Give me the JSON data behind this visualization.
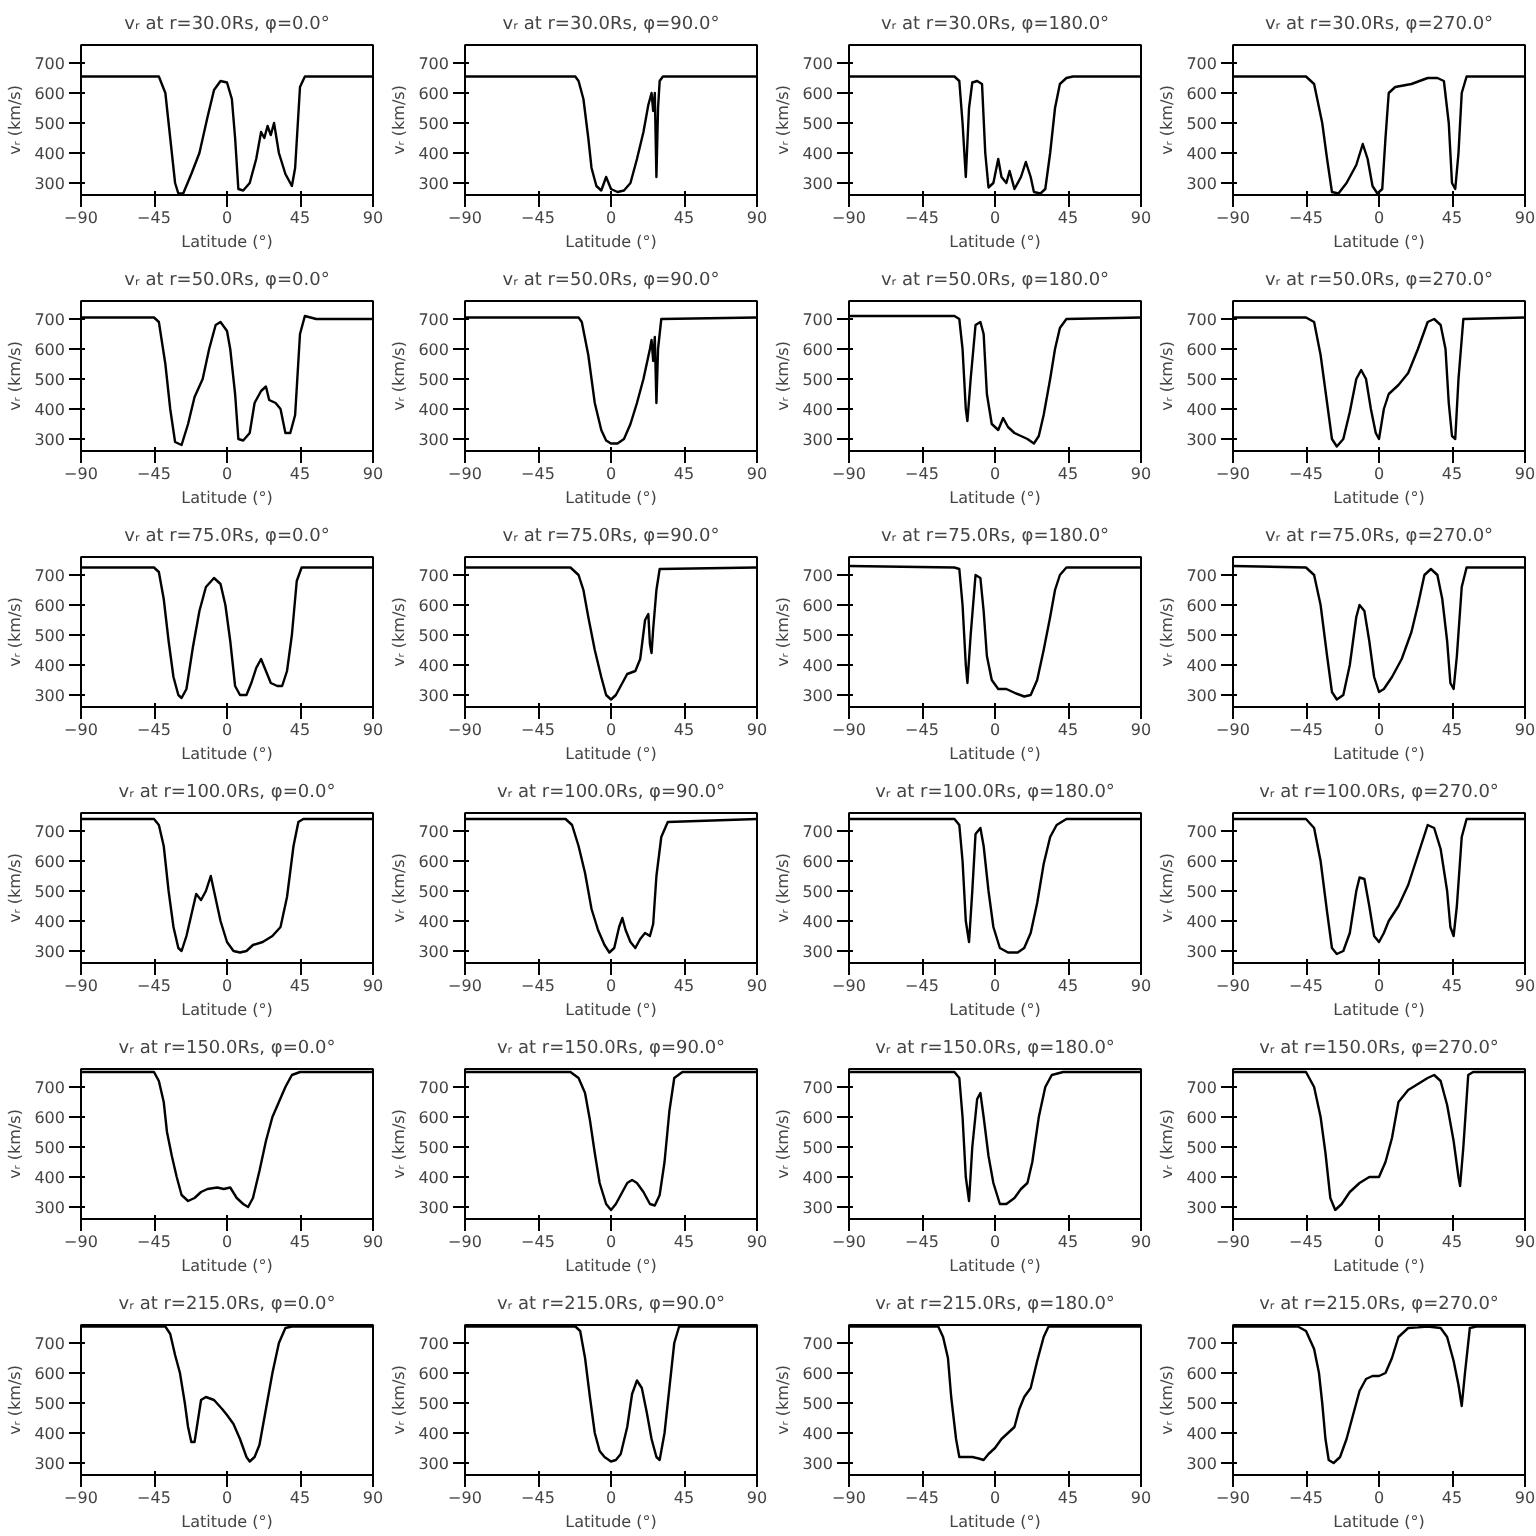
{
  "chart_data": [
    {
      "type": "line",
      "title": "vᵣ at r=30.0Rs, φ=0.0°",
      "xlabel": "Latitude (°)",
      "ylabel": "vᵣ (km/s)",
      "xlim": [
        -90,
        90
      ],
      "ylim": [
        260,
        760
      ],
      "xticks": [
        -90,
        -45,
        0,
        45,
        90
      ],
      "yticks": [
        300,
        400,
        500,
        600,
        700
      ],
      "x": [
        -90,
        -42,
        -38,
        -35,
        -32,
        -30,
        -27,
        -22,
        -17,
        -12,
        -8,
        -4,
        0,
        3,
        5,
        7,
        10,
        14,
        18,
        21,
        23,
        25,
        27,
        29,
        32,
        36,
        40,
        42,
        45,
        48,
        90
      ],
      "series": [
        {
          "color": "#000000",
          "values": [
            655,
            655,
            600,
            450,
            300,
            265,
            265,
            330,
            400,
            520,
            610,
            640,
            635,
            580,
            450,
            280,
            275,
            300,
            380,
            470,
            450,
            490,
            460,
            500,
            400,
            330,
            290,
            350,
            620,
            655,
            655
          ]
        }
      ]
    },
    {
      "type": "line",
      "title": "vᵣ at r=30.0Rs, φ=90.0°",
      "xlabel": "Latitude (°)",
      "ylabel": "vᵣ (km/s)",
      "xlim": [
        -90,
        90
      ],
      "ylim": [
        260,
        760
      ],
      "xticks": [
        -90,
        -45,
        0,
        45,
        90
      ],
      "yticks": [
        300,
        400,
        500,
        600,
        700
      ],
      "x": [
        -90,
        -22,
        -20,
        -17,
        -14,
        -12,
        -9,
        -6,
        -3,
        0,
        4,
        8,
        12,
        16,
        20,
        23,
        25,
        26,
        27,
        28,
        29,
        30,
        32,
        90
      ],
      "series": [
        {
          "color": "#000000",
          "values": [
            655,
            655,
            640,
            580,
            450,
            350,
            290,
            275,
            320,
            280,
            270,
            275,
            300,
            380,
            470,
            560,
            600,
            540,
            600,
            320,
            550,
            640,
            655,
            655
          ]
        }
      ]
    },
    {
      "type": "line",
      "title": "vᵣ at r=30.0Rs, φ=180.0°",
      "xlabel": "Latitude (°)",
      "ylabel": "vᵣ (km/s)",
      "xlim": [
        -90,
        90
      ],
      "ylim": [
        260,
        760
      ],
      "xticks": [
        -90,
        -45,
        0,
        45,
        90
      ],
      "yticks": [
        300,
        400,
        500,
        600,
        700
      ],
      "x": [
        -90,
        -25,
        -22,
        -20,
        -18,
        -16,
        -14,
        -11,
        -8,
        -6,
        -4,
        -1,
        2,
        4,
        7,
        9,
        12,
        16,
        19,
        22,
        24,
        28,
        31,
        34,
        37,
        40,
        44,
        48,
        90
      ],
      "series": [
        {
          "color": "#000000",
          "values": [
            655,
            655,
            640,
            500,
            320,
            550,
            635,
            640,
            630,
            400,
            285,
            300,
            380,
            320,
            300,
            340,
            280,
            320,
            370,
            320,
            270,
            265,
            280,
            400,
            550,
            630,
            650,
            655,
            655
          ]
        }
      ]
    },
    {
      "type": "line",
      "title": "vᵣ at r=30.0Rs, φ=270.0°",
      "xlabel": "Latitude (°)",
      "ylabel": "vᵣ (km/s)",
      "xlim": [
        -90,
        90
      ],
      "ylim": [
        260,
        760
      ],
      "xticks": [
        -90,
        -45,
        0,
        45,
        90
      ],
      "yticks": [
        300,
        400,
        500,
        600,
        700
      ],
      "x": [
        -90,
        -45,
        -40,
        -35,
        -32,
        -29,
        -25,
        -20,
        -14,
        -10,
        -7,
        -4,
        -1,
        2,
        4,
        6,
        10,
        20,
        30,
        36,
        40,
        43,
        45,
        47,
        49,
        51,
        54,
        90
      ],
      "series": [
        {
          "color": "#000000",
          "values": [
            655,
            655,
            630,
            500,
            380,
            270,
            265,
            300,
            360,
            430,
            380,
            290,
            265,
            280,
            450,
            600,
            620,
            630,
            650,
            650,
            640,
            500,
            300,
            280,
            400,
            600,
            655,
            655
          ]
        }
      ]
    },
    {
      "type": "line",
      "title": "vᵣ at r=50.0Rs, φ=0.0°",
      "xlabel": "Latitude (°)",
      "ylabel": "vᵣ (km/s)",
      "xlim": [
        -90,
        90
      ],
      "ylim": [
        260,
        760
      ],
      "xticks": [
        -90,
        -45,
        0,
        45,
        90
      ],
      "yticks": [
        300,
        400,
        500,
        600,
        700
      ],
      "x": [
        -90,
        -45,
        -42,
        -38,
        -35,
        -32,
        -28,
        -24,
        -20,
        -15,
        -11,
        -7,
        -4,
        0,
        2,
        5,
        7,
        10,
        14,
        17,
        21,
        24,
        26,
        30,
        33,
        36,
        39,
        42,
        45,
        48,
        55,
        90
      ],
      "series": [
        {
          "color": "#000000",
          "values": [
            705,
            705,
            690,
            550,
            400,
            290,
            280,
            350,
            440,
            500,
            600,
            680,
            690,
            660,
            600,
            450,
            300,
            295,
            320,
            420,
            460,
            475,
            430,
            420,
            400,
            320,
            320,
            380,
            650,
            710,
            700,
            700
          ]
        }
      ]
    },
    {
      "type": "line",
      "title": "vᵣ at r=50.0Rs, φ=90.0°",
      "xlabel": "Latitude (°)",
      "ylabel": "vᵣ (km/s)",
      "xlim": [
        -90,
        90
      ],
      "ylim": [
        260,
        760
      ],
      "xticks": [
        -90,
        -45,
        0,
        45,
        90
      ],
      "yticks": [
        300,
        400,
        500,
        600,
        700
      ],
      "x": [
        -90,
        -20,
        -18,
        -14,
        -10,
        -6,
        -3,
        0,
        4,
        8,
        12,
        16,
        20,
        24,
        25,
        26,
        27,
        28,
        29,
        31,
        90
      ],
      "series": [
        {
          "color": "#000000",
          "values": [
            705,
            705,
            690,
            580,
            420,
            330,
            295,
            285,
            285,
            300,
            350,
            420,
            500,
            600,
            630,
            560,
            640,
            420,
            600,
            700,
            705
          ]
        }
      ]
    },
    {
      "type": "line",
      "title": "vᵣ at r=50.0Rs, φ=180.0°",
      "xlabel": "Latitude (°)",
      "ylabel": "vᵣ (km/s)",
      "xlim": [
        -90,
        90
      ],
      "ylim": [
        260,
        760
      ],
      "xticks": [
        -90,
        -45,
        0,
        45,
        90
      ],
      "yticks": [
        300,
        400,
        500,
        600,
        700
      ],
      "x": [
        -90,
        -25,
        -22,
        -20,
        -18,
        -17,
        -15,
        -12,
        -9,
        -7,
        -5,
        -2,
        2,
        5,
        8,
        12,
        16,
        20,
        24,
        27,
        30,
        34,
        37,
        40,
        44,
        90
      ],
      "series": [
        {
          "color": "#000000",
          "values": [
            710,
            710,
            700,
            600,
            400,
            360,
            500,
            680,
            690,
            650,
            450,
            350,
            330,
            370,
            340,
            320,
            310,
            300,
            285,
            310,
            380,
            500,
            600,
            670,
            700,
            705
          ]
        }
      ]
    },
    {
      "type": "line",
      "title": "vᵣ at r=50.0Rs, φ=270.0°",
      "xlabel": "Latitude (°)",
      "ylabel": "vᵣ (km/s)",
      "xlim": [
        -90,
        90
      ],
      "ylim": [
        260,
        760
      ],
      "xticks": [
        -90,
        -45,
        0,
        45,
        90
      ],
      "yticks": [
        300,
        400,
        500,
        600,
        700
      ],
      "x": [
        -90,
        -45,
        -40,
        -36,
        -32,
        -29,
        -26,
        -22,
        -18,
        -14,
        -11,
        -8,
        -5,
        -2,
        0,
        3,
        6,
        12,
        18,
        24,
        30,
        34,
        38,
        41,
        43,
        45,
        47,
        49,
        52,
        90
      ],
      "series": [
        {
          "color": "#000000",
          "values": [
            705,
            705,
            690,
            580,
            420,
            300,
            275,
            300,
            390,
            500,
            530,
            500,
            400,
            320,
            300,
            400,
            450,
            480,
            520,
            600,
            690,
            700,
            680,
            600,
            420,
            310,
            300,
            500,
            700,
            705
          ]
        }
      ]
    },
    {
      "type": "line",
      "title": "vᵣ at r=75.0Rs, φ=0.0°",
      "xlabel": "Latitude (°)",
      "ylabel": "vᵣ (km/s)",
      "xlim": [
        -90,
        90
      ],
      "ylim": [
        260,
        760
      ],
      "xticks": [
        -90,
        -45,
        0,
        45,
        90
      ],
      "yticks": [
        300,
        400,
        500,
        600,
        700
      ],
      "x": [
        -90,
        -45,
        -42,
        -39,
        -36,
        -33,
        -30,
        -28,
        -25,
        -21,
        -17,
        -13,
        -8,
        -4,
        -1,
        2,
        5,
        8,
        12,
        15,
        18,
        21,
        24,
        27,
        31,
        34,
        37,
        40,
        43,
        46,
        90
      ],
      "series": [
        {
          "color": "#000000",
          "values": [
            725,
            725,
            710,
            620,
            480,
            360,
            300,
            290,
            320,
            460,
            580,
            660,
            690,
            670,
            600,
            480,
            330,
            300,
            300,
            340,
            390,
            420,
            380,
            340,
            330,
            330,
            380,
            500,
            680,
            725,
            725
          ]
        }
      ]
    },
    {
      "type": "line",
      "title": "vᵣ at r=75.0Rs, φ=90.0°",
      "xlabel": "Latitude (°)",
      "ylabel": "vᵣ (km/s)",
      "xlim": [
        -90,
        90
      ],
      "ylim": [
        260,
        760
      ],
      "xticks": [
        -90,
        -45,
        0,
        45,
        90
      ],
      "yticks": [
        300,
        400,
        500,
        600,
        700
      ],
      "x": [
        -90,
        -25,
        -20,
        -17,
        -14,
        -10,
        -6,
        -3,
        0,
        3,
        6,
        10,
        15,
        18,
        21,
        23,
        24,
        25,
        26,
        28,
        30,
        90
      ],
      "series": [
        {
          "color": "#000000",
          "values": [
            725,
            725,
            700,
            650,
            560,
            450,
            360,
            300,
            285,
            300,
            330,
            370,
            380,
            420,
            550,
            570,
            470,
            440,
            520,
            650,
            720,
            725
          ]
        }
      ]
    },
    {
      "type": "line",
      "title": "vᵣ at r=75.0Rs, φ=180.0°",
      "xlabel": "Latitude (°)",
      "ylabel": "vᵣ (km/s)",
      "xlim": [
        -90,
        90
      ],
      "ylim": [
        260,
        760
      ],
      "xticks": [
        -90,
        -45,
        0,
        45,
        90
      ],
      "yticks": [
        300,
        400,
        500,
        600,
        700
      ],
      "x": [
        -90,
        -25,
        -22,
        -20,
        -18,
        -17,
        -15,
        -12,
        -9,
        -7,
        -5,
        -2,
        2,
        7,
        13,
        18,
        22,
        26,
        30,
        34,
        37,
        40,
        44,
        90
      ],
      "series": [
        {
          "color": "#000000",
          "values": [
            730,
            725,
            720,
            600,
            400,
            340,
            500,
            700,
            690,
            580,
            430,
            350,
            320,
            320,
            305,
            295,
            300,
            350,
            450,
            560,
            650,
            700,
            725,
            725
          ]
        }
      ]
    },
    {
      "type": "line",
      "title": "vᵣ at r=75.0Rs, φ=270.0°",
      "xlabel": "Latitude (°)",
      "ylabel": "vᵣ (km/s)",
      "xlim": [
        -90,
        90
      ],
      "ylim": [
        260,
        760
      ],
      "xticks": [
        -90,
        -45,
        0,
        45,
        90
      ],
      "yticks": [
        300,
        400,
        500,
        600,
        700
      ],
      "x": [
        -90,
        -45,
        -40,
        -36,
        -32,
        -29,
        -26,
        -22,
        -18,
        -14,
        -12,
        -9,
        -6,
        -3,
        0,
        3,
        8,
        14,
        20,
        24,
        28,
        32,
        36,
        39,
        42,
        44,
        46,
        48,
        51,
        54,
        90
      ],
      "series": [
        {
          "color": "#000000",
          "values": [
            730,
            725,
            700,
            600,
            430,
            310,
            285,
            300,
            400,
            560,
            600,
            580,
            480,
            360,
            310,
            320,
            360,
            420,
            510,
            600,
            700,
            720,
            700,
            620,
            480,
            340,
            320,
            430,
            660,
            725,
            725
          ]
        }
      ]
    },
    {
      "type": "line",
      "title": "vᵣ at r=100.0Rs, φ=0.0°",
      "xlabel": "Latitude (°)",
      "ylabel": "vᵣ (km/s)",
      "xlim": [
        -90,
        90
      ],
      "ylim": [
        260,
        760
      ],
      "xticks": [
        -90,
        -45,
        0,
        45,
        90
      ],
      "yticks": [
        300,
        400,
        500,
        600,
        700
      ],
      "x": [
        -90,
        -45,
        -42,
        -39,
        -36,
        -33,
        -30,
        -28,
        -25,
        -22,
        -19,
        -16,
        -13,
        -10,
        -8,
        -4,
        0,
        4,
        8,
        12,
        16,
        22,
        28,
        33,
        37,
        41,
        44,
        47,
        90
      ],
      "series": [
        {
          "color": "#000000",
          "values": [
            740,
            740,
            720,
            650,
            500,
            380,
            310,
            300,
            350,
            420,
            490,
            470,
            500,
            550,
            500,
            400,
            330,
            300,
            295,
            300,
            320,
            330,
            350,
            380,
            480,
            650,
            730,
            740,
            740
          ]
        }
      ]
    },
    {
      "type": "line",
      "title": "vᵣ at r=100.0Rs, φ=90.0°",
      "xlabel": "Latitude (°)",
      "ylabel": "vᵣ (km/s)",
      "xlim": [
        -90,
        90
      ],
      "ylim": [
        260,
        760
      ],
      "xticks": [
        -90,
        -45,
        0,
        45,
        90
      ],
      "yticks": [
        300,
        400,
        500,
        600,
        700
      ],
      "x": [
        -90,
        -28,
        -24,
        -20,
        -16,
        -12,
        -8,
        -4,
        -1,
        2,
        5,
        7,
        9,
        12,
        15,
        18,
        21,
        24,
        26,
        28,
        31,
        35,
        90
      ],
      "series": [
        {
          "color": "#000000",
          "values": [
            740,
            740,
            720,
            650,
            560,
            440,
            370,
            320,
            295,
            310,
            380,
            410,
            370,
            330,
            310,
            340,
            360,
            350,
            390,
            550,
            680,
            730,
            740
          ]
        }
      ]
    },
    {
      "type": "line",
      "title": "vᵣ at r=100.0Rs, φ=180.0°",
      "xlabel": "Latitude (°)",
      "ylabel": "vᵣ (km/s)",
      "xlim": [
        -90,
        90
      ],
      "ylim": [
        260,
        760
      ],
      "xticks": [
        -90,
        -45,
        0,
        45,
        90
      ],
      "yticks": [
        300,
        400,
        500,
        600,
        700
      ],
      "x": [
        -90,
        -25,
        -22,
        -20,
        -18,
        -16,
        -14,
        -12,
        -9,
        -7,
        -4,
        -1,
        3,
        8,
        14,
        18,
        22,
        26,
        30,
        34,
        38,
        44,
        90
      ],
      "series": [
        {
          "color": "#000000",
          "values": [
            740,
            740,
            720,
            600,
            400,
            330,
            500,
            690,
            710,
            650,
            500,
            380,
            310,
            295,
            295,
            310,
            360,
            460,
            590,
            680,
            720,
            740,
            740
          ]
        }
      ]
    },
    {
      "type": "line",
      "title": "vᵣ at r=100.0Rs, φ=270.0°",
      "xlabel": "Latitude (°)",
      "ylabel": "vᵣ (km/s)",
      "xlim": [
        -90,
        90
      ],
      "ylim": [
        260,
        760
      ],
      "xticks": [
        -90,
        -45,
        0,
        45,
        90
      ],
      "yticks": [
        300,
        400,
        500,
        600,
        700
      ],
      "x": [
        -90,
        -45,
        -40,
        -36,
        -32,
        -29,
        -26,
        -22,
        -18,
        -14,
        -12,
        -9,
        -6,
        -3,
        0,
        3,
        6,
        12,
        18,
        24,
        30,
        34,
        38,
        42,
        44,
        46,
        48,
        51,
        54,
        90
      ],
      "series": [
        {
          "color": "#000000",
          "values": [
            740,
            740,
            710,
            600,
            430,
            310,
            290,
            300,
            360,
            500,
            545,
            540,
            450,
            350,
            330,
            360,
            400,
            450,
            520,
            620,
            720,
            710,
            640,
            500,
            380,
            350,
            450,
            680,
            740,
            740
          ]
        }
      ]
    },
    {
      "type": "line",
      "title": "vᵣ at r=150.0Rs, φ=0.0°",
      "xlabel": "Latitude (°)",
      "ylabel": "vᵣ (km/s)",
      "xlim": [
        -90,
        90
      ],
      "ylim": [
        260,
        760
      ],
      "xticks": [
        -90,
        -45,
        0,
        45,
        90
      ],
      "yticks": [
        300,
        400,
        500,
        600,
        700
      ],
      "x": [
        -90,
        -45,
        -42,
        -39,
        -37,
        -34,
        -31,
        -28,
        -24,
        -20,
        -16,
        -12,
        -6,
        -2,
        2,
        6,
        10,
        13,
        16,
        20,
        24,
        28,
        32,
        36,
        40,
        45,
        90
      ],
      "series": [
        {
          "color": "#000000",
          "values": [
            750,
            750,
            720,
            650,
            550,
            470,
            400,
            340,
            320,
            330,
            350,
            360,
            365,
            360,
            365,
            330,
            310,
            300,
            330,
            420,
            520,
            600,
            650,
            700,
            740,
            750,
            750
          ]
        }
      ]
    },
    {
      "type": "line",
      "title": "vᵣ at r=150.0Rs, φ=90.0°",
      "xlabel": "Latitude (°)",
      "ylabel": "vᵣ (km/s)",
      "xlim": [
        -90,
        90
      ],
      "ylim": [
        260,
        760
      ],
      "xticks": [
        -90,
        -45,
        0,
        45,
        90
      ],
      "yticks": [
        300,
        400,
        500,
        600,
        700
      ],
      "x": [
        -90,
        -25,
        -20,
        -16,
        -13,
        -10,
        -7,
        -3,
        0,
        3,
        6,
        10,
        13,
        16,
        20,
        24,
        27,
        30,
        33,
        36,
        39,
        44,
        90
      ],
      "series": [
        {
          "color": "#000000",
          "values": [
            750,
            750,
            730,
            680,
            590,
            480,
            380,
            310,
            290,
            310,
            340,
            380,
            390,
            380,
            350,
            310,
            305,
            340,
            450,
            620,
            730,
            750,
            750
          ]
        }
      ]
    },
    {
      "type": "line",
      "title": "vᵣ at r=150.0Rs, φ=180.0°",
      "xlabel": "Latitude (°)",
      "ylabel": "vᵣ (km/s)",
      "xlim": [
        -90,
        90
      ],
      "ylim": [
        260,
        760
      ],
      "xticks": [
        -90,
        -45,
        0,
        45,
        90
      ],
      "yticks": [
        300,
        400,
        500,
        600,
        700
      ],
      "x": [
        -90,
        -25,
        -22,
        -20,
        -18,
        -16,
        -14,
        -11,
        -9,
        -7,
        -4,
        -1,
        3,
        7,
        12,
        16,
        20,
        23,
        27,
        31,
        35,
        42,
        90
      ],
      "series": [
        {
          "color": "#000000",
          "values": [
            750,
            750,
            730,
            600,
            400,
            320,
            500,
            660,
            680,
            600,
            470,
            380,
            310,
            310,
            330,
            360,
            380,
            450,
            600,
            700,
            740,
            750,
            750
          ]
        }
      ]
    },
    {
      "type": "line",
      "title": "vᵣ at r=150.0Rs, φ=270.0°",
      "xlabel": "Latitude (°)",
      "ylabel": "vᵣ (km/s)",
      "xlim": [
        -90,
        90
      ],
      "ylim": [
        260,
        760
      ],
      "xticks": [
        -90,
        -45,
        0,
        45,
        90
      ],
      "yticks": [
        300,
        400,
        500,
        600,
        700
      ],
      "x": [
        -90,
        -45,
        -40,
        -36,
        -33,
        -30,
        -27,
        -23,
        -18,
        -12,
        -6,
        0,
        4,
        8,
        12,
        18,
        24,
        30,
        34,
        38,
        42,
        46,
        49,
        50,
        52,
        55,
        58,
        90
      ],
      "series": [
        {
          "color": "#000000",
          "values": [
            750,
            750,
            700,
            600,
            480,
            330,
            290,
            310,
            350,
            380,
            400,
            400,
            450,
            530,
            650,
            690,
            710,
            730,
            740,
            720,
            640,
            520,
            400,
            370,
            500,
            740,
            750,
            750
          ]
        }
      ]
    },
    {
      "type": "line",
      "title": "vᵣ at r=215.0Rs, φ=0.0°",
      "xlabel": "Latitude (°)",
      "ylabel": "vᵣ (km/s)",
      "xlim": [
        -90,
        90
      ],
      "ylim": [
        260,
        760
      ],
      "xticks": [
        -90,
        -45,
        0,
        45,
        90
      ],
      "yticks": [
        300,
        400,
        500,
        600,
        700
      ],
      "x": [
        -90,
        -38,
        -35,
        -32,
        -29,
        -26,
        -24,
        -22,
        -20,
        -18,
        -16,
        -13,
        -8,
        -3,
        0,
        4,
        8,
        12,
        14,
        17,
        20,
        24,
        28,
        32,
        36,
        40,
        90
      ],
      "series": [
        {
          "color": "#000000",
          "values": [
            755,
            755,
            730,
            660,
            600,
            500,
            420,
            370,
            370,
            440,
            510,
            520,
            510,
            480,
            460,
            430,
            380,
            320,
            305,
            320,
            360,
            480,
            600,
            700,
            750,
            755,
            755
          ]
        }
      ]
    },
    {
      "type": "line",
      "title": "vᵣ at r=215.0Rs, φ=90.0°",
      "xlabel": "Latitude (°)",
      "ylabel": "vᵣ (km/s)",
      "xlim": [
        -90,
        90
      ],
      "ylim": [
        260,
        760
      ],
      "xticks": [
        -90,
        -45,
        0,
        45,
        90
      ],
      "yticks": [
        300,
        400,
        500,
        600,
        700
      ],
      "x": [
        -90,
        -22,
        -19,
        -16,
        -13,
        -10,
        -7,
        -4,
        0,
        3,
        6,
        10,
        13,
        16,
        19,
        22,
        25,
        28,
        30,
        33,
        36,
        39,
        42,
        90
      ],
      "series": [
        {
          "color": "#000000",
          "values": [
            755,
            755,
            740,
            650,
            520,
            400,
            340,
            320,
            305,
            310,
            330,
            420,
            530,
            575,
            550,
            470,
            380,
            320,
            310,
            400,
            550,
            700,
            755,
            755
          ]
        }
      ]
    },
    {
      "type": "line",
      "title": "vᵣ at r=215.0Rs, φ=180.0°",
      "xlabel": "Latitude (°)",
      "ylabel": "vᵣ (km/s)",
      "xlim": [
        -90,
        90
      ],
      "ylim": [
        260,
        760
      ],
      "xticks": [
        -90,
        -45,
        0,
        45,
        90
      ],
      "yticks": [
        300,
        400,
        500,
        600,
        700
      ],
      "x": [
        -90,
        -35,
        -32,
        -29,
        -27,
        -24,
        -22,
        -18,
        -14,
        -10,
        -7,
        -4,
        0,
        4,
        8,
        12,
        15,
        18,
        22,
        26,
        30,
        33,
        90
      ],
      "series": [
        {
          "color": "#000000",
          "values": [
            755,
            755,
            720,
            650,
            520,
            380,
            320,
            320,
            320,
            315,
            310,
            330,
            350,
            380,
            400,
            420,
            480,
            520,
            550,
            640,
            720,
            755,
            755
          ]
        }
      ]
    },
    {
      "type": "line",
      "title": "vᵣ at r=215.0Rs, φ=270.0°",
      "xlabel": "Latitude (°)",
      "ylabel": "vᵣ (km/s)",
      "xlim": [
        -90,
        90
      ],
      "ylim": [
        260,
        760
      ],
      "xticks": [
        -90,
        -45,
        0,
        45,
        90
      ],
      "yticks": [
        300,
        400,
        500,
        600,
        700
      ],
      "x": [
        -90,
        -50,
        -45,
        -40,
        -37,
        -35,
        -33,
        -31,
        -28,
        -24,
        -20,
        -16,
        -12,
        -8,
        -4,
        0,
        4,
        8,
        12,
        18,
        24,
        30,
        38,
        42,
        46,
        49,
        51,
        53,
        56,
        60,
        90
      ],
      "series": [
        {
          "color": "#000000",
          "values": [
            755,
            755,
            740,
            680,
            600,
            500,
            380,
            310,
            300,
            320,
            380,
            460,
            540,
            580,
            590,
            590,
            600,
            650,
            720,
            750,
            752,
            755,
            750,
            720,
            640,
            560,
            490,
            600,
            750,
            755,
            755
          ]
        }
      ]
    }
  ]
}
